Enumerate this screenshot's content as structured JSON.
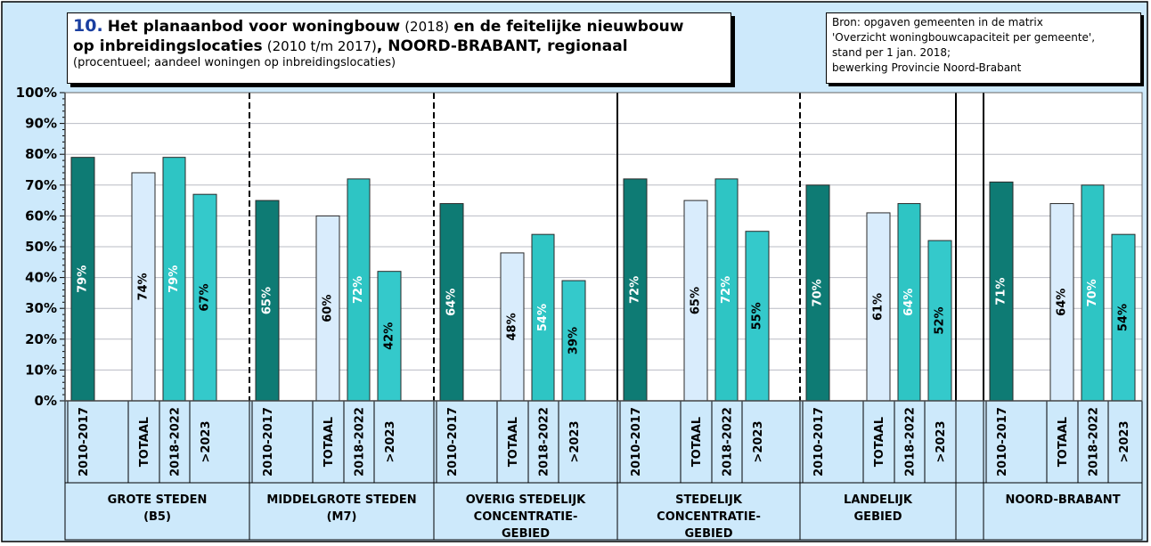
{
  "title": {
    "number": "10.",
    "part1": "Het planaanbod voor woningbouw",
    "part2": "(2018)",
    "part3": "en de feitelijke  nieuwbouw",
    "part4": "op inbreidingslocaties",
    "part5": "(2010 t/m 2017)",
    "part6": ", NOORD-BRABANT, regionaal",
    "subtitle": "(procentueel; aandeel woningen op inbreidingslocaties)"
  },
  "source": {
    "line1": "Bron: opgaven gemeenten in de matrix",
    "line2": "'Overzicht woningbouwcapaciteit per gemeente',",
    "line3": "stand per 1 jan. 2018;",
    "line4": "bewerking Provincie Noord-Brabant"
  },
  "colors": {
    "background": "#cde9fb",
    "plot": "#ffffff",
    "grid": "#b9bcc4",
    "realised": "#0e7b74",
    "totaal": "#d9ecfc",
    "plan_2018_2022": "#2ec5c4",
    "plan_2023": "#34c9cb"
  },
  "chart_data": {
    "type": "bar",
    "ylim": [
      0,
      100
    ],
    "yticks": [
      "0%",
      "10%",
      "20%",
      "30%",
      "40%",
      "50%",
      "60%",
      "70%",
      "80%",
      "90%",
      "100%"
    ],
    "categories": [
      "2010-2017",
      "TOTAAL",
      "2018-2022",
      ">2023"
    ],
    "groups": [
      {
        "label": [
          "GROTE STEDEN",
          "(B5)"
        ],
        "values": [
          79,
          74,
          79,
          67
        ],
        "labels": [
          "79%",
          "74%",
          "79%",
          "67%"
        ]
      },
      {
        "label": [
          "MIDDELGROTE STEDEN",
          "(M7)"
        ],
        "values": [
          65,
          60,
          72,
          42
        ],
        "labels": [
          "65%",
          "60%",
          "72%",
          "42%"
        ]
      },
      {
        "label": [
          "OVERIG STEDELIJK",
          "CONCENTRATIE-",
          "GEBIED"
        ],
        "values": [
          64,
          48,
          54,
          39
        ],
        "labels": [
          "64%",
          "48%",
          "54%",
          "39%"
        ]
      },
      {
        "label": [
          "STEDELIJK",
          "CONCENTRATIE-",
          "GEBIED"
        ],
        "values": [
          72,
          65,
          72,
          55
        ],
        "labels": [
          "72%",
          "65%",
          "72%",
          "55%"
        ]
      },
      {
        "label": [
          "LANDELIJK",
          "GEBIED"
        ],
        "values": [
          70,
          61,
          64,
          52
        ],
        "labels": [
          "70%",
          "61%",
          "64%",
          "52%"
        ]
      },
      {
        "label": [
          "NOORD-BRABANT"
        ],
        "values": [
          71,
          64,
          70,
          54
        ],
        "labels": [
          "71%",
          "64%",
          "70%",
          "54%"
        ]
      }
    ]
  }
}
